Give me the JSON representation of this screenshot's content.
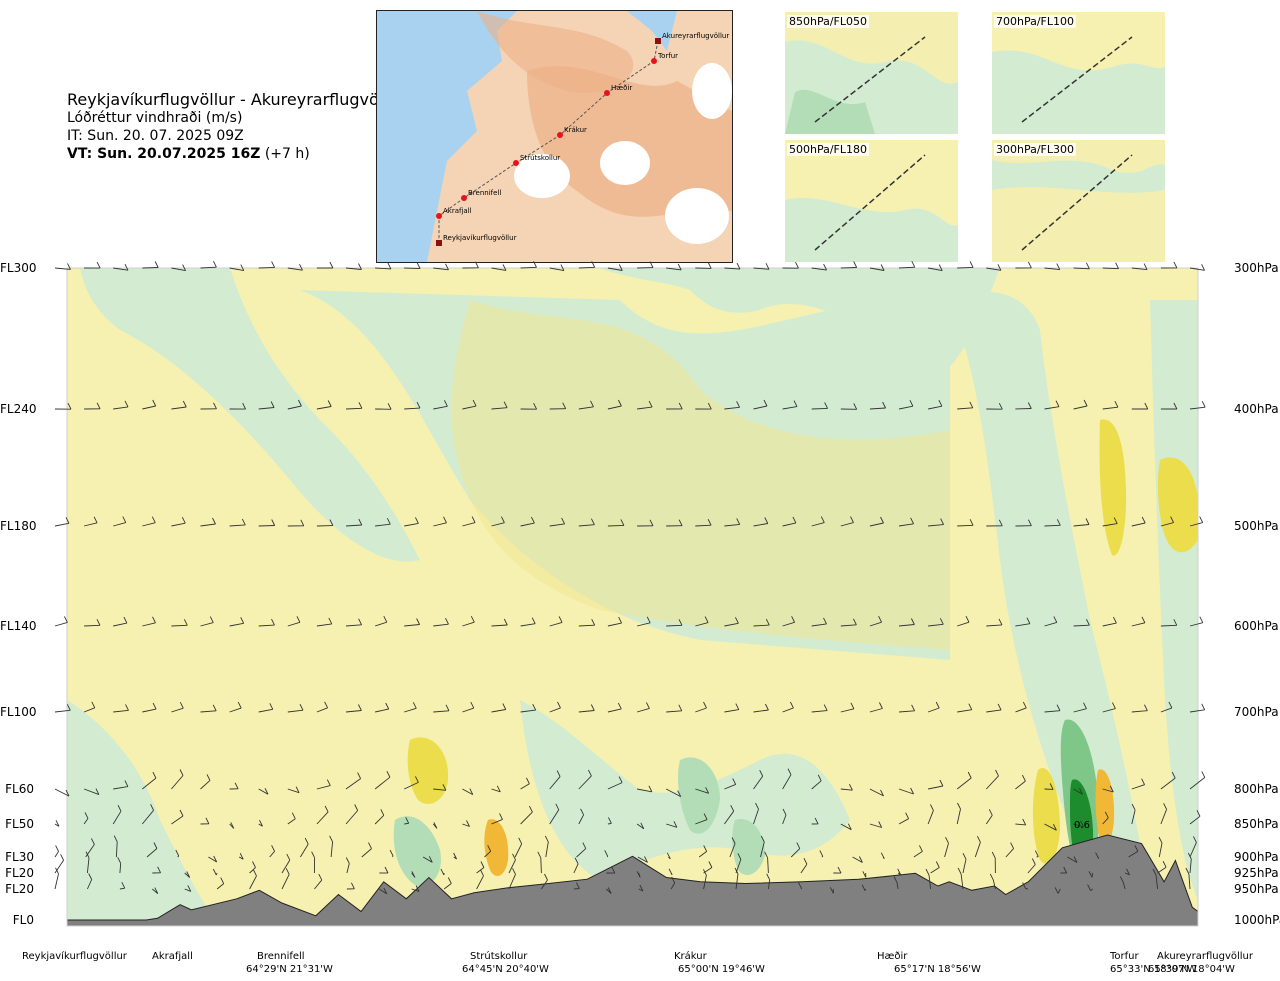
{
  "header": {
    "route": "Reykjavíkurflugvöllur - Akureyrarflugvöllur",
    "parameter": "Lóðréttur vindhraði (m/s)",
    "it": "IT: Sun. 20. 07. 2025 09Z",
    "vt_bold": "VT: Sun. 20.07.2025 16Z",
    "vt_offset": "(+7 h)"
  },
  "map": {
    "stations": [
      {
        "name": "Akureyrarflugvöllur",
        "marker": "square"
      },
      {
        "name": "Torfur",
        "marker": "circle"
      },
      {
        "name": "Hæðir",
        "marker": "circle"
      },
      {
        "name": "Krákur",
        "marker": "circle"
      },
      {
        "name": "Strútskollur",
        "marker": "circle"
      },
      {
        "name": "Brennifell",
        "marker": "circle"
      },
      {
        "name": "Akrafjall",
        "marker": "circle"
      },
      {
        "name": "Reykjavíkurflugvöllur",
        "marker": "square"
      }
    ],
    "colors": {
      "sea": "#a9d2f0",
      "land": "#f4d4b4",
      "high_land": "#ecb088",
      "ice": "#ffffff",
      "route_marker": "#e8121c"
    }
  },
  "panels": [
    {
      "label": "850hPa/FL050"
    },
    {
      "label": "700hPa/FL100"
    },
    {
      "label": "500hPa/FL180"
    },
    {
      "label": "300hPa/FL300"
    }
  ],
  "levels": [
    {
      "fl": "FL300",
      "hpa": "300hPa"
    },
    {
      "fl": "FL240",
      "hpa": "400hPa"
    },
    {
      "fl": "FL180",
      "hpa": "500hPa"
    },
    {
      "fl": "FL140",
      "hpa": "600hPa"
    },
    {
      "fl": "FL100",
      "hpa": "700hPa"
    },
    {
      "fl": "FL60",
      "hpa": "800hPa"
    },
    {
      "fl": "FL50",
      "hpa": "850hPa"
    },
    {
      "fl": "FL30",
      "hpa": "900hPa"
    },
    {
      "fl": "FL20",
      "hpa": "925hPa"
    },
    {
      "fl": "FL20",
      "hpa": "950hPa"
    },
    {
      "fl": "FL0",
      "hpa": "1000hPa"
    }
  ],
  "bottom_labels": [
    {
      "name": "Reykjavíkurflugvöllur",
      "coord": ""
    },
    {
      "name": "Akrafjall",
      "coord": ""
    },
    {
      "name": "Brennifell",
      "coord": "64°29'N 21°31'W"
    },
    {
      "name": "Strútskollur",
      "coord": "64°45'N 20°40'W"
    },
    {
      "name": "Krákur",
      "coord": "65°00'N 19°46'W"
    },
    {
      "name": "Hæðir",
      "coord": "65°17'N 18°56'W"
    },
    {
      "name": "Torfur",
      "coord": "65°33'N 18°07'W"
    },
    {
      "name": "Akureyrarflugvöllur",
      "coord": "65°39'N 18°04'W"
    }
  ],
  "annotations": {
    "peak_value": "0.6"
  },
  "chart_data": {
    "type": "heatmap",
    "colors": {
      "strong_down": "#1c8c2c",
      "moderate_down": "#7fc788",
      "weak_down": "#b2ddb6",
      "very_weak_down": "#d3ecd1",
      "neutral": "#fcfde6",
      "very_weak_up": "#f6f1b0",
      "weak_up": "#f0e694",
      "moderate_up": "#ecdd4c",
      "strong_up": "#f0b836",
      "terrain": "#808080"
    },
    "terrain_profile_fraction": [
      0.0,
      0.0,
      0.0,
      0.0,
      0.02,
      0.18,
      0.12,
      0.25,
      0.35,
      0.2,
      0.05,
      0.3,
      0.1,
      0.45,
      0.25,
      0.5,
      0.25,
      0.32,
      0.38,
      0.42,
      0.48,
      0.75,
      0.5,
      0.45,
      0.43,
      0.45,
      0.48,
      0.52,
      0.55,
      0.4,
      0.45,
      0.35,
      0.4,
      0.3,
      0.45,
      0.85,
      1.0,
      0.9,
      0.45,
      0.7,
      0.15,
      0.1,
      0.05,
      0.03
    ],
    "terrain_distance_fraction": [
      0.0,
      0.02,
      0.05,
      0.07,
      0.08,
      0.1,
      0.11,
      0.15,
      0.17,
      0.19,
      0.22,
      0.24,
      0.26,
      0.28,
      0.3,
      0.32,
      0.34,
      0.36,
      0.39,
      0.42,
      0.46,
      0.5,
      0.53,
      0.56,
      0.6,
      0.65,
      0.7,
      0.73,
      0.75,
      0.77,
      0.78,
      0.8,
      0.82,
      0.83,
      0.85,
      0.88,
      0.92,
      0.95,
      0.97,
      0.98,
      0.995,
      1.0,
      1.0,
      1.0
    ]
  }
}
